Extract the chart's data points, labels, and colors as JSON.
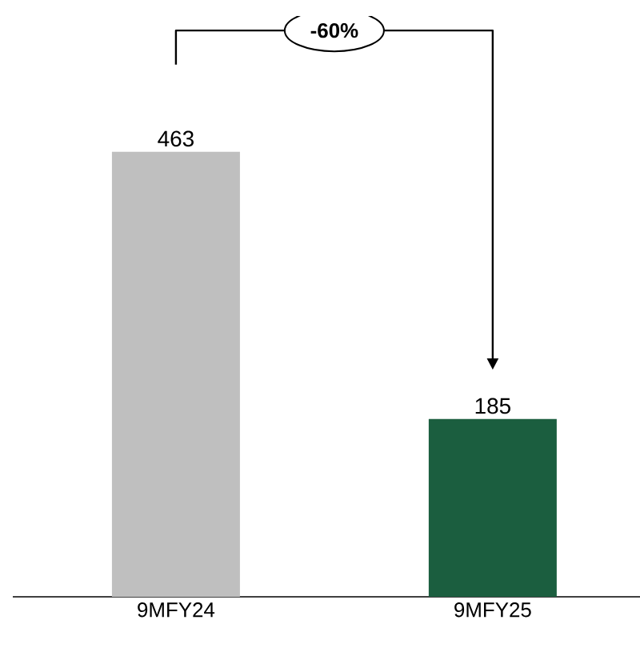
{
  "chart_data": {
    "type": "bar",
    "categories": [
      "9MFY24",
      "9MFY25"
    ],
    "values": [
      463,
      185
    ],
    "colors": [
      "#bfbfbf",
      "#1b5e3f"
    ],
    "data_labels": true,
    "annotations": [
      "-60%"
    ]
  }
}
